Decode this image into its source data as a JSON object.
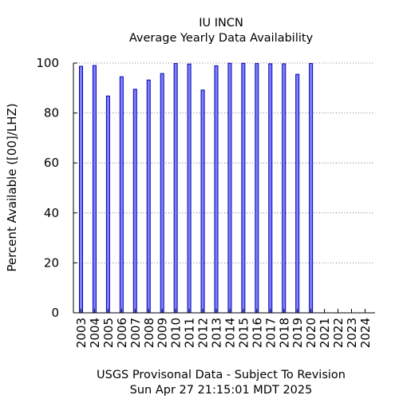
{
  "chart_data": {
    "type": "bar",
    "title": "IU INCN",
    "subtitle": "Average Yearly Data Availability",
    "xlabel": "",
    "ylabel": "Percent Available ([00]/LHZ)",
    "ylim": [
      0,
      100
    ],
    "yticks": [
      0,
      20,
      40,
      60,
      80,
      100
    ],
    "grid": true,
    "categories": [
      "2003",
      "2004",
      "2005",
      "2006",
      "2007",
      "2008",
      "2009",
      "2010",
      "2011",
      "2012",
      "2013",
      "2014",
      "2015",
      "2016",
      "2017",
      "2018",
      "2019",
      "2020",
      "2021",
      "2022",
      "2023",
      "2024"
    ],
    "values": [
      98.7,
      99.0,
      86.8,
      94.5,
      89.5,
      93.2,
      95.8,
      99.8,
      99.6,
      89.2,
      98.9,
      99.9,
      99.9,
      99.8,
      99.7,
      99.7,
      95.5,
      99.8,
      null,
      null,
      null,
      null
    ],
    "colors": {
      "bar_fill": "#8080ff",
      "bar_stroke": "#0000b0"
    }
  },
  "footer": {
    "line1": "USGS Provisonal Data - Subject To Revision",
    "line2": "Sun Apr 27 21:15:01 MDT 2025"
  }
}
